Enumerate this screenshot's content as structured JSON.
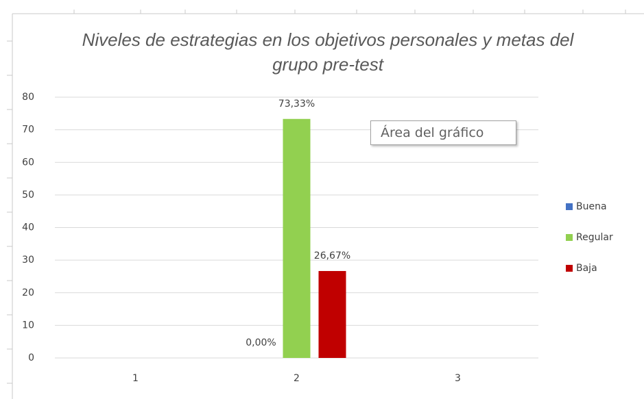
{
  "chart_data": {
    "type": "bar",
    "title": "Niveles de estrategias en los objetivos personales y metas del grupo pre-test",
    "categories": [
      "1",
      "2",
      "3"
    ],
    "series": [
      {
        "name": "Buena",
        "color": "#4472c4",
        "values": [
          null,
          0,
          null
        ],
        "value_labels": [
          null,
          "0,00%",
          null
        ]
      },
      {
        "name": "Regular",
        "color": "#92d050",
        "values": [
          null,
          73.33,
          null
        ],
        "value_labels": [
          null,
          "73,33%",
          null
        ]
      },
      {
        "name": "Baja",
        "color": "#c00000",
        "values": [
          null,
          26.67,
          null
        ],
        "value_labels": [
          null,
          "26,67%",
          null
        ]
      }
    ],
    "ylim": [
      0,
      80
    ],
    "yticks": [
      0,
      10,
      20,
      30,
      40,
      50,
      60,
      70,
      80
    ],
    "grid": true,
    "legend": "right",
    "tooltip": "Área del gráfico"
  }
}
